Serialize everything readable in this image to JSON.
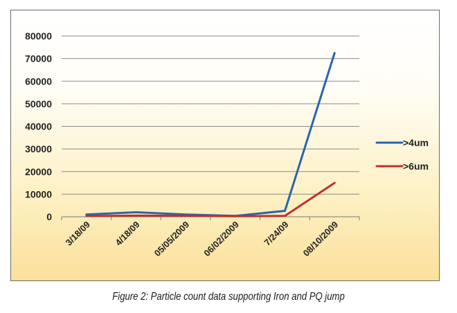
{
  "caption": "Figure 2: Particle count data supporting Iron and PQ jump",
  "chart_data": {
    "type": "line",
    "categories": [
      "3/18/09",
      "4/18/09",
      "05/05/2009",
      "06/02/2009",
      "7/24/09",
      "08/10/2009"
    ],
    "series": [
      {
        "name": ">4um",
        "color": "#2a63b0",
        "values": [
          1000,
          2000,
          1000,
          400,
          2600,
          72500
        ]
      },
      {
        "name": ">6um",
        "color": "#c0302c",
        "values": [
          300,
          500,
          400,
          200,
          400,
          15000
        ]
      }
    ],
    "y_ticks": [
      0,
      10000,
      20000,
      30000,
      40000,
      50000,
      60000,
      70000,
      80000
    ],
    "ylim": [
      0,
      80000
    ],
    "grid": true,
    "legend_position": "right",
    "xlabel": "",
    "ylabel": "",
    "title": ""
  }
}
